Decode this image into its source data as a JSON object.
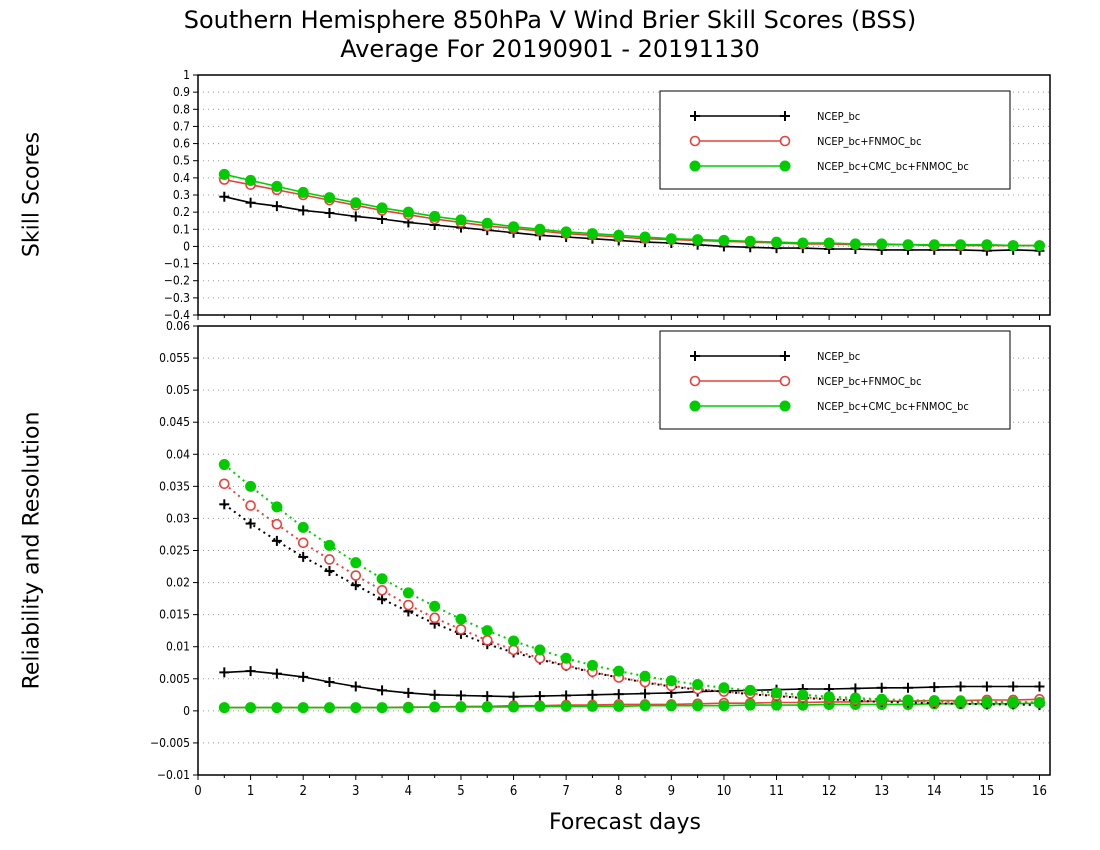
{
  "title_line1": "Southern Hemisphere 850hPa V Wind Brier Skill Scores (BSS)",
  "title_line2": "Average For 20190901 - 20191130",
  "xlabel": "Forecast days",
  "colors": {
    "ncep": "#000000",
    "fnmoc": "#e8403c",
    "cmc": "#00cc00",
    "grid": "#999999"
  },
  "chart_data": [
    {
      "type": "line",
      "ylabel": "Skill Scores",
      "xlim": [
        0,
        16.2
      ],
      "ylim": [
        -0.4,
        1
      ],
      "yticks": [
        "1",
        "0.9",
        "0.8",
        "0.7",
        "0.6",
        "0.5",
        "0.4",
        "0.3",
        "0.2",
        "0.1",
        "0",
        "−0.1",
        "−0.2",
        "−0.3",
        "−0.4"
      ],
      "xticks": [
        "0",
        "1",
        "2",
        "3",
        "4",
        "5",
        "6",
        "7",
        "8",
        "9",
        "10",
        "11",
        "12",
        "13",
        "14",
        "15",
        "16"
      ],
      "grid": true,
      "legend_position": "top-right",
      "x": [
        0.5,
        1,
        1.5,
        2,
        2.5,
        3,
        3.5,
        4,
        4.5,
        5,
        5.5,
        6,
        6.5,
        7,
        7.5,
        8,
        8.5,
        9,
        9.5,
        10,
        10.5,
        11,
        11.5,
        12,
        12.5,
        13,
        13.5,
        14,
        14.5,
        15,
        15.5,
        16
      ],
      "series": [
        {
          "name": "NCEP_bc",
          "marker": "plus",
          "values": [
            0.29,
            0.255,
            0.235,
            0.21,
            0.195,
            0.175,
            0.16,
            0.14,
            0.125,
            0.11,
            0.095,
            0.08,
            0.065,
            0.055,
            0.045,
            0.035,
            0.025,
            0.02,
            0.01,
            0.0,
            -0.005,
            -0.01,
            -0.01,
            -0.015,
            -0.015,
            -0.02,
            -0.02,
            -0.02,
            -0.02,
            -0.025,
            -0.02,
            -0.025
          ]
        },
        {
          "name": "NCEP_bc+FNMOC_bc",
          "marker": "open-circle",
          "values": [
            0.39,
            0.36,
            0.33,
            0.3,
            0.27,
            0.24,
            0.21,
            0.185,
            0.16,
            0.14,
            0.12,
            0.105,
            0.09,
            0.075,
            0.065,
            0.055,
            0.045,
            0.04,
            0.035,
            0.03,
            0.025,
            0.02,
            0.015,
            0.015,
            0.01,
            0.01,
            0.01,
            0.005,
            0.005,
            0.005,
            0.005,
            0.005
          ]
        },
        {
          "name": "NCEP_bc+CMC_bc+FNMOC_bc",
          "marker": "filled-circle",
          "values": [
            0.42,
            0.385,
            0.35,
            0.315,
            0.285,
            0.255,
            0.225,
            0.2,
            0.175,
            0.155,
            0.135,
            0.115,
            0.1,
            0.085,
            0.075,
            0.065,
            0.055,
            0.045,
            0.04,
            0.035,
            0.03,
            0.025,
            0.02,
            0.02,
            0.015,
            0.015,
            0.01,
            0.01,
            0.01,
            0.01,
            0.005,
            0.005
          ]
        }
      ]
    },
    {
      "type": "line",
      "ylabel": "Reliability and Resolution",
      "xlim": [
        0,
        16.2
      ],
      "ylim": [
        -0.01,
        0.06
      ],
      "yticks": [
        "0.06",
        "0.055",
        "0.05",
        "0.045",
        "0.04",
        "0.035",
        "0.03",
        "0.025",
        "0.02",
        "0.015",
        "0.01",
        "0.005",
        "0",
        "−0.005",
        "−0.01"
      ],
      "xticks": [
        "0",
        "1",
        "2",
        "3",
        "4",
        "5",
        "6",
        "7",
        "8",
        "9",
        "10",
        "11",
        "12",
        "13",
        "14",
        "15",
        "16"
      ],
      "grid": true,
      "legend_position": "top-right",
      "x": [
        0.5,
        1,
        1.5,
        2,
        2.5,
        3,
        3.5,
        4,
        4.5,
        5,
        5.5,
        6,
        6.5,
        7,
        7.5,
        8,
        8.5,
        9,
        9.5,
        10,
        10.5,
        11,
        11.5,
        12,
        12.5,
        13,
        13.5,
        14,
        14.5,
        15,
        15.5,
        16
      ],
      "series": [
        {
          "name": "NCEP_bc",
          "marker": "plus",
          "line": "solid",
          "role": "reliability",
          "values": [
            0.006,
            0.0062,
            0.0058,
            0.0053,
            0.0045,
            0.0038,
            0.0032,
            0.0028,
            0.0025,
            0.0024,
            0.0023,
            0.0022,
            0.0023,
            0.0024,
            0.0025,
            0.0026,
            0.0027,
            0.0028,
            0.003,
            0.0031,
            0.0032,
            0.0033,
            0.0034,
            0.0034,
            0.0035,
            0.0036,
            0.0036,
            0.0037,
            0.0038,
            0.0038,
            0.0038,
            0.0038
          ]
        },
        {
          "name": "NCEP_bc+FNMOC_bc",
          "marker": "open-circle",
          "line": "solid",
          "role": "reliability",
          "values": [
            0.0005,
            0.0005,
            0.0005,
            0.0005,
            0.0005,
            0.0005,
            0.0005,
            0.0006,
            0.0006,
            0.0007,
            0.0007,
            0.0008,
            0.0008,
            0.0009,
            0.0009,
            0.001,
            0.001,
            0.001,
            0.0011,
            0.0012,
            0.0012,
            0.0013,
            0.0013,
            0.0014,
            0.0014,
            0.0015,
            0.0015,
            0.0016,
            0.0016,
            0.0017,
            0.0017,
            0.0018
          ]
        },
        {
          "name": "NCEP_bc+CMC_bc+FNMOC_bc",
          "marker": "filled-circle",
          "line": "solid",
          "role": "reliability",
          "values": [
            0.0005,
            0.0005,
            0.0005,
            0.0005,
            0.0005,
            0.0005,
            0.0005,
            0.0005,
            0.0006,
            0.0006,
            0.0006,
            0.0006,
            0.0007,
            0.0007,
            0.0007,
            0.0007,
            0.0008,
            0.0008,
            0.0008,
            0.0008,
            0.0009,
            0.0009,
            0.0009,
            0.001,
            0.001,
            0.001,
            0.001,
            0.0011,
            0.0011,
            0.0011,
            0.0011,
            0.0012
          ]
        },
        {
          "name": "NCEP_bc",
          "marker": "plus",
          "line": "dotted",
          "role": "resolution",
          "values": [
            0.0322,
            0.0292,
            0.0265,
            0.024,
            0.0218,
            0.0196,
            0.0174,
            0.0155,
            0.0136,
            0.012,
            0.0104,
            0.0091,
            0.008,
            0.007,
            0.006,
            0.0052,
            0.0044,
            0.0038,
            0.0033,
            0.003,
            0.0026,
            0.0023,
            0.002,
            0.0018,
            0.0016,
            0.0014,
            0.0013,
            0.0012,
            0.0011,
            0.001,
            0.001,
            0.0009
          ]
        },
        {
          "name": "NCEP_bc+FNMOC_bc",
          "marker": "open-circle",
          "line": "dotted",
          "role": "resolution",
          "values": [
            0.0354,
            0.032,
            0.0291,
            0.0262,
            0.0236,
            0.0211,
            0.0188,
            0.0165,
            0.0145,
            0.0127,
            0.011,
            0.0095,
            0.0082,
            0.0071,
            0.0061,
            0.0052,
            0.0045,
            0.0039,
            0.0034,
            0.003,
            0.0027,
            0.0024,
            0.0021,
            0.0019,
            0.0017,
            0.0016,
            0.0015,
            0.0014,
            0.0014,
            0.0013,
            0.0013,
            0.0013
          ]
        },
        {
          "name": "NCEP_bc+CMC_bc+FNMOC_bc",
          "marker": "filled-circle",
          "line": "dotted",
          "role": "resolution",
          "values": [
            0.0384,
            0.035,
            0.0318,
            0.0286,
            0.0258,
            0.0231,
            0.0206,
            0.0184,
            0.0163,
            0.0143,
            0.0125,
            0.0109,
            0.0095,
            0.0082,
            0.0071,
            0.0062,
            0.0054,
            0.0047,
            0.0041,
            0.0036,
            0.0032,
            0.0028,
            0.0025,
            0.0022,
            0.002,
            0.0018,
            0.0017,
            0.0016,
            0.0015,
            0.0014,
            0.0014,
            0.0013
          ]
        }
      ]
    }
  ]
}
